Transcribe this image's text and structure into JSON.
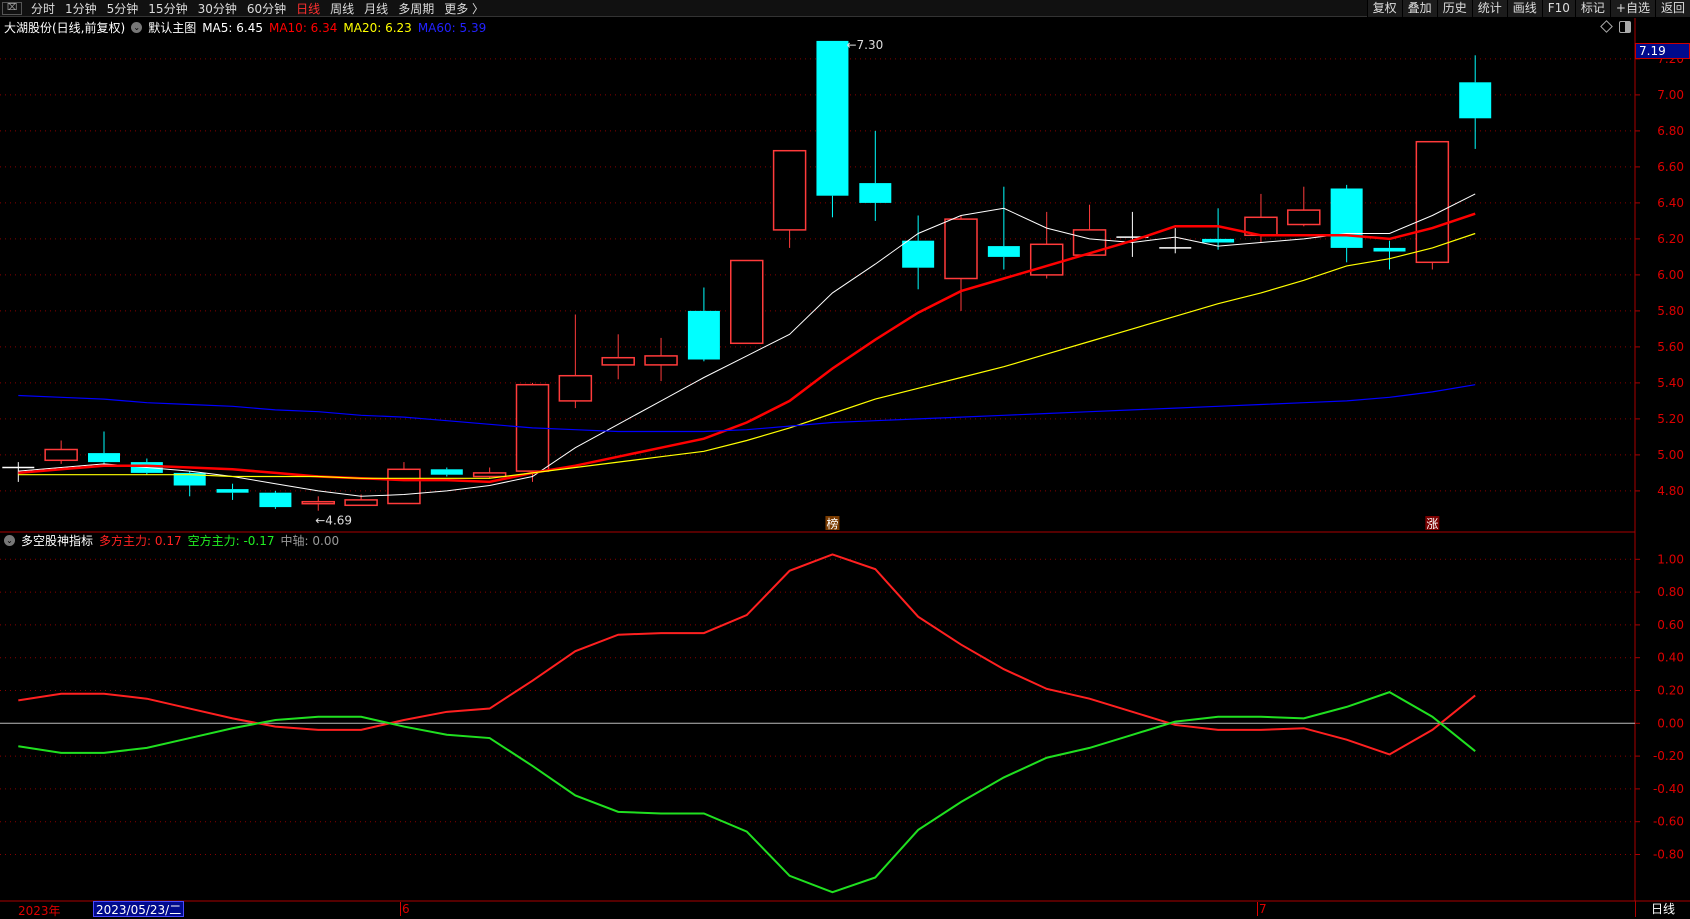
{
  "topbar": {
    "periods": [
      "分时",
      "1分钟",
      "5分钟",
      "15分钟",
      "30分钟",
      "60分钟",
      "日线",
      "周线",
      "月线",
      "多周期",
      "更多 〉"
    ],
    "active": "日线",
    "tools": [
      "复权",
      "叠加",
      "历史",
      "统计",
      "画线",
      "F10",
      "标记",
      "+自选",
      "返回"
    ]
  },
  "legend": {
    "title": "大湖股份(日线,前复权)",
    "template": "默认主图",
    "ma5": "MA5: 6.45",
    "ma10": "MA10: 6.34",
    "ma20": "MA20: 6.23",
    "ma60": "MA60: 5.39"
  },
  "sublegend": {
    "title": "多空股神指标",
    "bull": "多方主力: 0.17",
    "bear": "空方主力: -0.17",
    "mid": "中轴: 0.00"
  },
  "colors": {
    "up": "#ff3b3b",
    "down": "#00ffff",
    "ma5": "#ffffff",
    "ma10": "#ff0000",
    "ma20": "#ffff00",
    "ma60": "#0000ff",
    "bull": "#ff2020",
    "bear": "#20e020",
    "grid": "#8a0000"
  },
  "current_price": "7.19",
  "high_label": "7.30",
  "low_label": "4.69",
  "markers": [
    {
      "index": 19,
      "text": "榜"
    },
    {
      "index": 33,
      "text": "涨"
    }
  ],
  "time_axis": {
    "year": "2023年",
    "cursor_date": "2023/05/23/二",
    "months": [
      {
        "index": 9,
        "label": "6"
      },
      {
        "index": 29,
        "label": "7"
      }
    ],
    "period": "日线"
  },
  "chart_data": [
    {
      "type": "candlestick",
      "title": "大湖股份(日线,前复权)",
      "ylim": [
        4.6,
        7.3
      ],
      "yticks": [
        "7.20",
        "7.00",
        "6.80",
        "6.60",
        "6.40",
        "6.20",
        "6.00",
        "5.80",
        "5.60",
        "5.40",
        "5.20",
        "5.00",
        "4.80"
      ],
      "ohlc": [
        [
          4.93,
          4.96,
          4.85,
          4.93
        ],
        [
          4.97,
          5.08,
          4.95,
          5.03
        ],
        [
          5.01,
          5.13,
          4.94,
          4.96
        ],
        [
          4.96,
          4.98,
          4.89,
          4.9
        ],
        [
          4.9,
          4.91,
          4.77,
          4.83
        ],
        [
          4.81,
          4.84,
          4.75,
          4.79
        ],
        [
          4.79,
          4.8,
          4.7,
          4.71
        ],
        [
          4.73,
          4.77,
          4.69,
          4.74
        ],
        [
          4.72,
          4.78,
          4.72,
          4.75
        ],
        [
          4.73,
          4.96,
          4.73,
          4.92
        ],
        [
          4.92,
          4.93,
          4.88,
          4.89
        ],
        [
          4.88,
          4.93,
          4.87,
          4.9
        ],
        [
          4.91,
          5.4,
          4.85,
          5.39
        ],
        [
          5.3,
          5.78,
          5.26,
          5.44
        ],
        [
          5.5,
          5.67,
          5.42,
          5.54
        ],
        [
          5.5,
          5.65,
          5.41,
          5.55
        ],
        [
          5.8,
          5.93,
          5.52,
          5.53
        ],
        [
          5.62,
          6.08,
          5.62,
          6.08
        ],
        [
          6.25,
          6.69,
          6.15,
          6.69
        ],
        [
          7.3,
          7.3,
          6.32,
          6.44
        ],
        [
          6.51,
          6.8,
          6.3,
          6.4
        ],
        [
          6.19,
          6.33,
          5.92,
          6.04
        ],
        [
          5.98,
          6.33,
          5.8,
          6.31
        ],
        [
          6.16,
          6.49,
          6.03,
          6.1
        ],
        [
          6.0,
          6.35,
          5.98,
          6.17
        ],
        [
          6.11,
          6.39,
          6.12,
          6.25
        ],
        [
          6.21,
          6.35,
          6.1,
          6.21
        ],
        [
          6.15,
          6.26,
          6.12,
          6.15
        ],
        [
          6.2,
          6.37,
          6.14,
          6.18
        ],
        [
          6.22,
          6.45,
          6.18,
          6.32
        ],
        [
          6.28,
          6.49,
          6.27,
          6.36
        ],
        [
          6.48,
          6.5,
          6.07,
          6.15
        ],
        [
          6.15,
          6.19,
          6.03,
          6.13
        ],
        [
          6.07,
          6.74,
          6.03,
          6.74
        ],
        [
          7.07,
          7.22,
          6.7,
          6.87
        ]
      ],
      "series": [
        {
          "name": "MA5",
          "values": [
            4.91,
            4.93,
            4.95,
            4.93,
            4.91,
            4.88,
            4.84,
            4.8,
            4.77,
            4.78,
            4.8,
            4.83,
            4.88,
            5.04,
            5.17,
            5.3,
            5.43,
            5.55,
            5.67,
            5.9,
            6.06,
            6.23,
            6.33,
            6.37,
            6.26,
            6.2,
            6.18,
            6.21,
            6.16,
            6.18,
            6.2,
            6.23,
            6.23,
            6.33,
            6.45
          ]
        },
        {
          "name": "MA10",
          "values": [
            4.9,
            4.92,
            4.94,
            4.94,
            4.93,
            4.92,
            4.9,
            4.88,
            4.87,
            4.86,
            4.86,
            4.85,
            4.9,
            4.94,
            4.99,
            5.04,
            5.09,
            5.18,
            5.3,
            5.48,
            5.64,
            5.79,
            5.91,
            5.98,
            6.05,
            6.12,
            6.19,
            6.27,
            6.27,
            6.22,
            6.22,
            6.22,
            6.2,
            6.26,
            6.34
          ]
        },
        {
          "name": "MA20",
          "values": [
            4.89,
            4.89,
            4.89,
            4.89,
            4.89,
            4.88,
            4.88,
            4.88,
            4.87,
            4.87,
            4.87,
            4.87,
            4.9,
            4.93,
            4.96,
            4.99,
            5.02,
            5.08,
            5.15,
            5.23,
            5.31,
            5.37,
            5.43,
            5.49,
            5.56,
            5.63,
            5.7,
            5.77,
            5.84,
            5.9,
            5.97,
            6.05,
            6.09,
            6.15,
            6.23
          ]
        },
        {
          "name": "MA60",
          "values": [
            5.33,
            5.32,
            5.31,
            5.29,
            5.28,
            5.27,
            5.25,
            5.24,
            5.22,
            5.21,
            5.19,
            5.17,
            5.15,
            5.14,
            5.13,
            5.13,
            5.13,
            5.14,
            5.16,
            5.18,
            5.19,
            5.2,
            5.21,
            5.22,
            5.23,
            5.24,
            5.25,
            5.26,
            5.27,
            5.28,
            5.29,
            5.3,
            5.32,
            5.35,
            5.39
          ]
        }
      ]
    },
    {
      "type": "line",
      "title": "多空股神指标",
      "ylim": [
        -1.05,
        1.1
      ],
      "yticks": [
        "1.00",
        "0.80",
        "0.60",
        "0.40",
        "0.20",
        "0.00",
        "-0.20",
        "-0.40",
        "-0.60",
        "-0.80"
      ],
      "series": [
        {
          "name": "多方主力",
          "values": [
            0.14,
            0.18,
            0.18,
            0.15,
            0.09,
            0.03,
            -0.02,
            -0.04,
            -0.04,
            0.02,
            0.07,
            0.09,
            0.26,
            0.44,
            0.54,
            0.55,
            0.55,
            0.66,
            0.93,
            1.03,
            0.94,
            0.65,
            0.48,
            0.33,
            0.21,
            0.15,
            0.07,
            -0.01,
            -0.04,
            -0.04,
            -0.03,
            -0.1,
            -0.19,
            -0.04,
            0.17
          ]
        },
        {
          "name": "空方主力",
          "values": [
            -0.14,
            -0.18,
            -0.18,
            -0.15,
            -0.09,
            -0.03,
            0.02,
            0.04,
            0.04,
            -0.02,
            -0.07,
            -0.09,
            -0.26,
            -0.44,
            -0.54,
            -0.55,
            -0.55,
            -0.66,
            -0.93,
            -1.03,
            -0.94,
            -0.65,
            -0.48,
            -0.33,
            -0.21,
            -0.15,
            -0.07,
            0.01,
            0.04,
            0.04,
            0.03,
            0.1,
            0.19,
            0.04,
            -0.17
          ]
        },
        {
          "name": "中轴",
          "values": [
            0
          ]
        }
      ]
    }
  ]
}
